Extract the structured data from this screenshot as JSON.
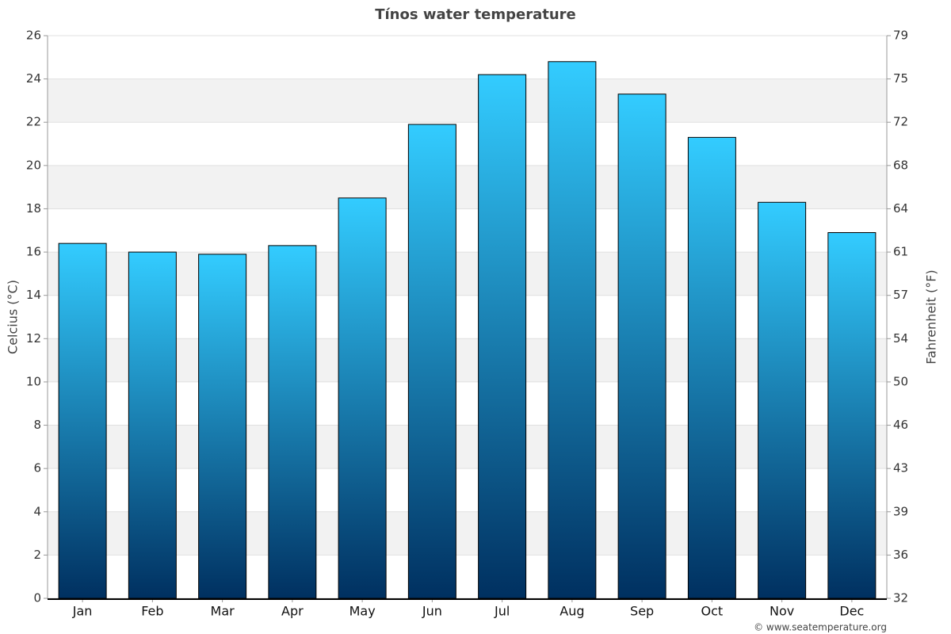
{
  "chart_data": {
    "type": "bar",
    "title": "Tínos water temperature",
    "y_label": "Celcius (°C)",
    "y2_label": "Fahrenheit (°F)",
    "credit": "© www.seatemperature.org",
    "categories": [
      "Jan",
      "Feb",
      "Mar",
      "Apr",
      "May",
      "Jun",
      "Jul",
      "Aug",
      "Sep",
      "Oct",
      "Nov",
      "Dec"
    ],
    "values": [
      16.4,
      16.0,
      15.9,
      16.3,
      18.5,
      21.9,
      24.2,
      24.8,
      23.3,
      21.3,
      18.3,
      16.9
    ],
    "colors": [
      "#33ccff",
      "#003060"
    ],
    "ylim": [
      0,
      26
    ],
    "yticks": [
      0,
      2,
      4,
      6,
      8,
      10,
      12,
      14,
      16,
      18,
      20,
      22,
      24,
      26
    ],
    "y2lim": [
      32,
      78.8
    ],
    "y2ticks": [
      32,
      {
        "value": 35.6,
        "label": "36"
      },
      {
        "value": 39.2,
        "label": "39"
      },
      {
        "value": 42.8,
        "label": "43"
      },
      {
        "value": 46.4,
        "label": "46"
      },
      50,
      {
        "value": 53.6,
        "label": "54"
      },
      {
        "value": 57.2,
        "label": "57"
      },
      {
        "value": 60.8,
        "label": "61"
      },
      {
        "value": 64.4,
        "label": "64"
      },
      68,
      {
        "value": 71.6,
        "label": "72"
      },
      {
        "value": 75.2,
        "label": "75"
      },
      {
        "value": 78.8,
        "label": "79"
      }
    ],
    "grid": true
  }
}
